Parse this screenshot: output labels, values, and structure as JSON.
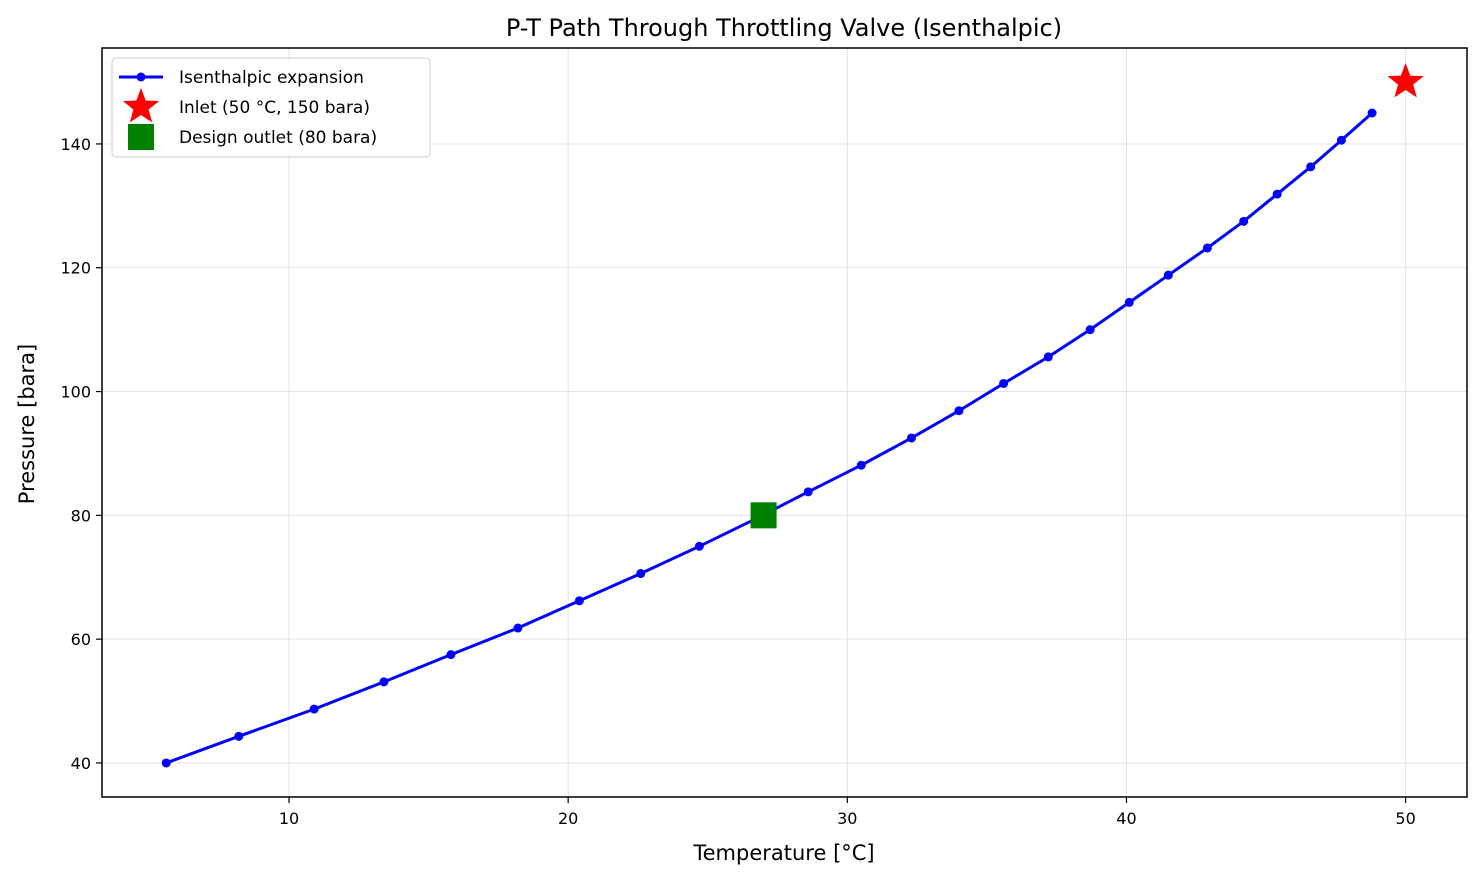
{
  "chart_data": {
    "type": "line",
    "title": "P-T Path Through Throttling Valve (Isenthalpic)",
    "xlabel": "Temperature [°C]",
    "ylabel": "Pressure [bara]",
    "xlim": [
      3.3,
      52.2
    ],
    "ylim": [
      34.5,
      155.5
    ],
    "xticks": [
      10,
      20,
      30,
      40,
      50
    ],
    "yticks": [
      40,
      60,
      80,
      100,
      120,
      140
    ],
    "grid": true,
    "legend_position": "top-left",
    "series": [
      {
        "name": "Isenthalpic expansion",
        "color": "#0000ff",
        "marker": "circle",
        "x": [
          5.6,
          8.2,
          10.9,
          13.4,
          15.8,
          18.2,
          20.4,
          22.6,
          24.7,
          26.7,
          28.6,
          30.5,
          32.3,
          34.0,
          35.6,
          37.2,
          38.7,
          40.1,
          41.5,
          42.9,
          44.2,
          45.4,
          46.6,
          47.7,
          48.8
        ],
        "y": [
          40.0,
          44.3,
          48.7,
          53.1,
          57.5,
          61.8,
          66.2,
          70.6,
          75.0,
          79.4,
          83.8,
          88.1,
          92.5,
          96.9,
          101.3,
          105.6,
          110.0,
          114.4,
          118.8,
          123.2,
          127.5,
          131.9,
          136.3,
          140.6,
          145.0
        ]
      },
      {
        "name": "Inlet (50 °C, 150 bara)",
        "color": "#ff0000",
        "marker": "star",
        "x": [
          50
        ],
        "y": [
          150
        ]
      },
      {
        "name": "Design outlet (80 bara)",
        "color": "#008000",
        "marker": "square",
        "x": [
          27.0
        ],
        "y": [
          80
        ]
      }
    ]
  }
}
